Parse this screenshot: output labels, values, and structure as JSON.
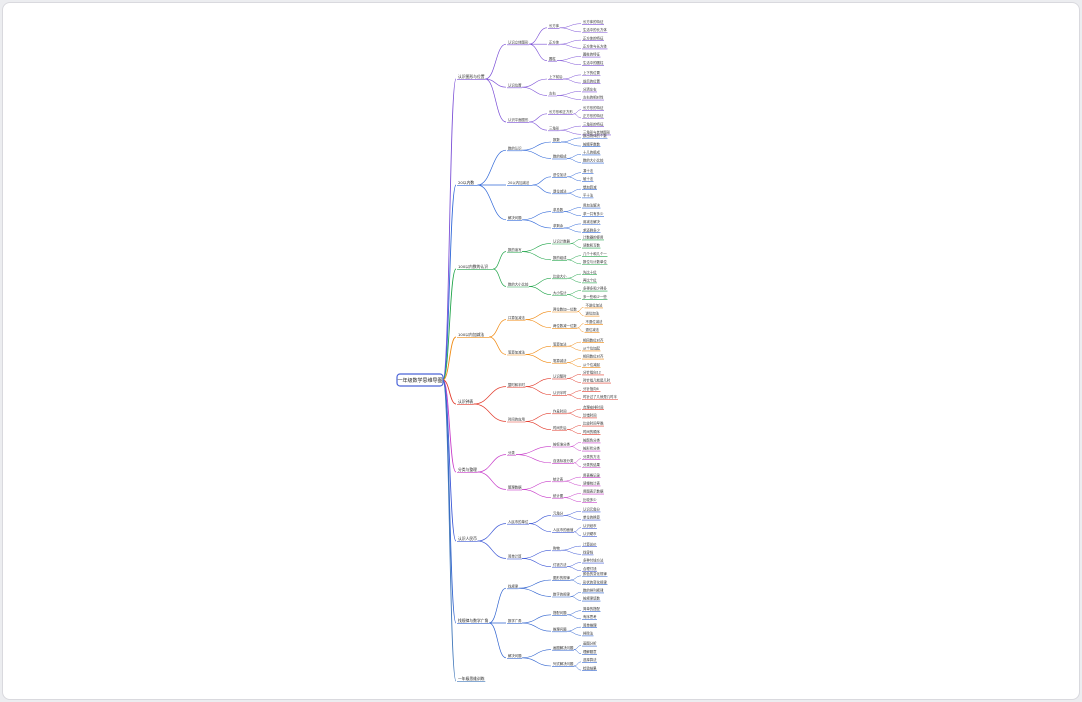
{
  "root": "一年级数学思维导图",
  "colors": [
    "#7b4fd6",
    "#2f67d8",
    "#21a54a",
    "#f08a12",
    "#e23b2c",
    "#c73bc9",
    "#3d58d6",
    "#2e62cf",
    "#3f76b9"
  ],
  "branches": [
    {
      "label": "认识图形与位置",
      "children": [
        {
          "label": "认识立体图形",
          "children": [
            {
              "label": "长方体",
              "leaves": [
                "长方体的特征",
                "生活中的长方体"
              ]
            },
            {
              "label": "正方体",
              "leaves": [
                "正方体的特征",
                "正方体与长方体"
              ]
            },
            {
              "label": "圆柱",
              "leaves": [
                "圆柱的特征",
                "生活中的圆柱"
              ]
            }
          ]
        },
        {
          "label": "认识位置",
          "children": [
            {
              "label": "上下前后",
              "leaves": [
                "上下的位置",
                "前后的位置"
              ]
            },
            {
              "label": "左右",
              "leaves": [
                "分清左右",
                "左右的相对性"
              ]
            }
          ]
        },
        {
          "label": "认识平面图形",
          "children": [
            {
              "label": "长方形和正方形",
              "leaves": [
                "长方形的特征",
                "正方形的特征"
              ]
            },
            {
              "label": "三角形",
              "leaves": [
                "三角形的特征",
                "三角形与其他图形"
              ]
            }
          ]
        }
      ]
    },
    {
      "label": "20以内数",
      "children": [
        {
          "label": "数的认识",
          "children": [
            {
              "label": "数数",
              "leaves": [
                "数出物体的个数",
                "按顺序数数"
              ]
            },
            {
              "label": "数的组成",
              "leaves": [
                "十几的组成",
                "数的大小比较"
              ]
            }
          ]
        },
        {
          "label": "20以内加减法",
          "children": [
            {
              "label": "进位加法",
              "leaves": [
                "凑十法",
                "破十法"
              ]
            },
            {
              "label": "退位减法",
              "leaves": [
                "想加算减",
                "平十法"
              ]
            }
          ]
        },
        {
          "label": "解决问题",
          "children": [
            {
              "label": "求总数",
              "leaves": [
                "用加法解决",
                "求一共有多少"
              ]
            },
            {
              "label": "求剩余",
              "leaves": [
                "用减法解决",
                "求还剩多少"
              ]
            }
          ]
        }
      ]
    },
    {
      "label": "100以内数的认识",
      "children": [
        {
          "label": "数的读写",
          "children": [
            {
              "label": "认识计数器",
              "leaves": [
                "计数器的使用",
                "读数和写数"
              ]
            },
            {
              "label": "数的组成",
              "leaves": [
                "几个十和几个一",
                "数位与计数单位"
              ]
            }
          ]
        },
        {
          "label": "数的大小比较",
          "children": [
            {
              "label": "比较大小",
              "leaves": [
                "先比十位",
                "再比个位"
              ]
            },
            {
              "label": "大小估计",
              "leaves": [
                "多得多和少得多",
                "多一些和少一些"
              ]
            }
          ]
        }
      ]
    },
    {
      "label": "100以内加减法",
      "children": [
        {
          "label": "口算加减法",
          "children": [
            {
              "label": "两位数加一位数",
              "leaves": [
                "不进位加法",
                "进位加法"
              ]
            },
            {
              "label": "两位数减一位数",
              "leaves": [
                "不退位减法",
                "退位减法"
              ]
            }
          ]
        },
        {
          "label": "笔算加减法",
          "children": [
            {
              "label": "笔算加法",
              "leaves": [
                "相同数位对齐",
                "从个位加起"
              ]
            },
            {
              "label": "笔算减法",
              "leaves": [
                "相同数位对齐",
                "从个位减起"
              ]
            }
          ]
        }
      ]
    },
    {
      "label": "认识钟表",
      "children": [
        {
          "label": "整时和半时",
          "children": [
            {
              "label": "认识整时",
              "leaves": [
                "分针指向12",
                "时针指几就是几时"
              ]
            },
            {
              "label": "认识半时",
              "leaves": [
                "分针指向6",
                "时针过了几就是几时半"
              ]
            }
          ]
        },
        {
          "label": "时间的应用",
          "children": [
            {
              "label": "作息时间",
              "leaves": [
                "合理安排时间",
                "珍惜时间"
              ]
            },
            {
              "label": "时间先后",
              "leaves": [
                "比较时间早晚",
                "时间的顺序"
              ]
            }
          ]
        }
      ]
    },
    {
      "label": "分类与整理",
      "children": [
        {
          "label": "分类",
          "children": [
            {
              "label": "按标准分类",
              "leaves": [
                "按颜色分类",
                "按形状分类"
              ]
            },
            {
              "label": "自选标准分类",
              "leaves": [
                "分类的方法",
                "分类的结果"
              ]
            }
          ]
        },
        {
          "label": "整理数据",
          "children": [
            {
              "label": "统计表",
              "leaves": [
                "用表格记录",
                "读懂统计表"
              ]
            },
            {
              "label": "统计图",
              "leaves": [
                "用图表示数据",
                "比较多少"
              ]
            }
          ]
        }
      ]
    },
    {
      "label": "认识人民币",
      "children": [
        {
          "label": "人民币的单位",
          "children": [
            {
              "label": "元角分",
              "leaves": [
                "认识元角分",
                "单位的换算"
              ]
            },
            {
              "label": "人民币的面值",
              "leaves": [
                "认识纸币",
                "认识硬币"
              ]
            }
          ]
        },
        {
          "label": "简单计算",
          "children": [
            {
              "label": "购物",
              "leaves": [
                "计算总价",
                "找零钱"
              ]
            },
            {
              "label": "付钱方法",
              "leaves": [
                "多种付钱方法",
                "合理付钱"
              ]
            }
          ]
        }
      ]
    },
    {
      "label": "找规律与数学广角",
      "children": [
        {
          "label": "找规律",
          "children": [
            {
              "label": "图形的规律",
              "leaves": [
                "颜色的变化规律",
                "形状的变化规律"
              ]
            },
            {
              "label": "数字的规律",
              "leaves": [
                "数的排列规律",
                "按规律填数"
              ]
            }
          ]
        },
        {
          "label": "数学广角",
          "children": [
            {
              "label": "搭配问题",
              "leaves": [
                "简单的搭配",
                "有序思考"
              ]
            },
            {
              "label": "推理问题",
              "leaves": [
                "简单推理",
                "排除法"
              ]
            }
          ]
        },
        {
          "label": "解决问题",
          "children": [
            {
              "label": "画图解决问题",
              "leaves": [
                "画图分析",
                "理解题意"
              ]
            },
            {
              "label": "列式解决问题",
              "leaves": [
                "选择算法",
                "检验结果"
              ]
            }
          ]
        }
      ]
    },
    {
      "label": "一年级思维训练",
      "children": []
    }
  ]
}
